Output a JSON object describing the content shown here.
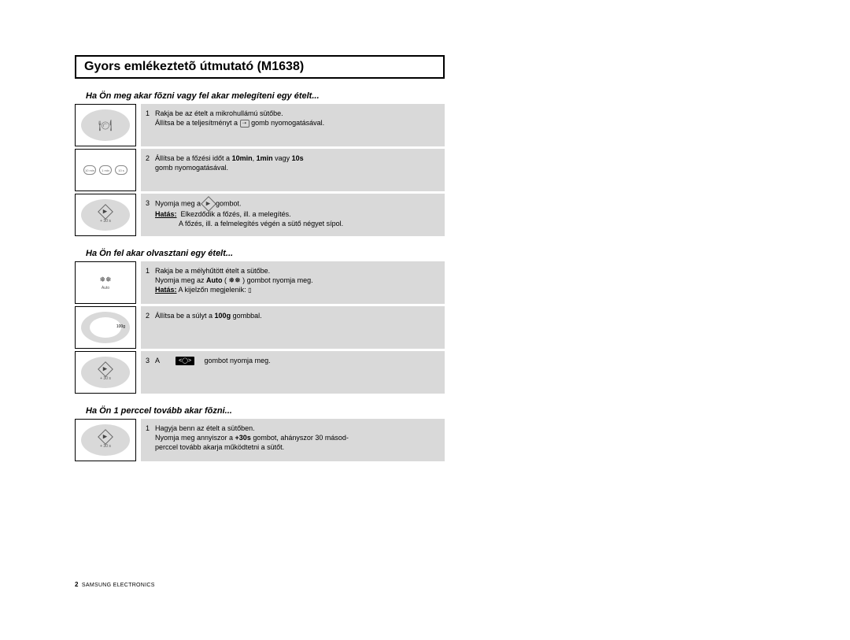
{
  "title": "Gyors emlékeztetõ útmutató (M1638)",
  "colors": {
    "step_bg": "#d9d9d9",
    "oval_bg": "#d9d9d9",
    "page_bg": "#ffffff",
    "border": "#000000"
  },
  "sections": [
    {
      "heading": "Ha Ön meg akar fõzni vagy fel akar melegíteni egy ételt...",
      "steps": [
        {
          "num": "1",
          "lines": [
            "Rakja be az ételt a mikrohullámú sütőbe.",
            "Állítsa  be  a  teljesítményt  a        gomb nyomogatásával."
          ],
          "icon": "dish"
        },
        {
          "num": "2",
          "lines_html": "Állítsa be a főzési időt a <span class='b'>10min</span>, <span class='b'>1min</span> vagy <span class='b'>10s</span><br>gomb nyomogatásával.",
          "icon": "time-buttons"
        },
        {
          "num": "3",
          "lines_html": "Nyomja meg a  <span class='inline-icon'><span class='diamond'><span class='diamond-inner'>▶</span></span></span>  gombot.<br><span class='u b'>Hatás:</span>&nbsp;&nbsp;Elkezdődik a főzés, ill. a melegítés.<br>&nbsp;&nbsp;&nbsp;&nbsp;&nbsp;&nbsp;&nbsp;&nbsp;&nbsp;&nbsp;&nbsp;&nbsp;A főzés, ill. a felmelegítés végén a sütő négyet sípol.",
          "icon": "start-diamond"
        }
      ]
    },
    {
      "heading": "Ha Ön fel akar olvasztani egy ételt...",
      "steps": [
        {
          "num": "1",
          "lines_html": "Rakja be a mélyhűtött ételt a sütőbe.<br>Nyomja meg az <span class='b'>Auto</span> ( ❅❅ ) gombot nyomja meg.<br><span class='u b'>Hatás:</span> A kijelzőn megjelenik: <span style='font-size:8px'>▯</span>",
          "icon": "auto-snow"
        },
        {
          "num": "2",
          "lines_html": "Állítsa be a súlyt a <span class='b'>100g</span> gombbal.",
          "icon": "oval-100g"
        },
        {
          "num": "3",
          "lines_html": "A&nbsp;&nbsp;&nbsp;&nbsp;&nbsp;&nbsp;&nbsp;&nbsp;<span class='dk-btn'>&lt;◯&gt;</span>&nbsp;&nbsp;&nbsp;&nbsp;&nbsp;gombot nyomja meg.",
          "icon": "start-diamond"
        }
      ]
    },
    {
      "heading": "Ha Ön 1 perccel tovább akar fõzni...",
      "steps": [
        {
          "num": "1",
          "lines_html": "Hagyja benn az ételt a sütőben.<br>Nyomja meg annyiszor a  <span class='b'>+30s</span> gombot, ahányszor 30 másod-<br>perccel tovább akarja működtetni a sütőt.",
          "icon": "start-diamond"
        }
      ]
    }
  ],
  "footer": {
    "page_num": "2",
    "brand": "SAMSUNG ELECTRONICS"
  },
  "icon_labels": {
    "start_sub": "+ 30 s",
    "auto_label": "Auto",
    "btn10min": "10 min",
    "btn1min": "1 min",
    "btn10s": "10 s",
    "g100": "100g"
  }
}
